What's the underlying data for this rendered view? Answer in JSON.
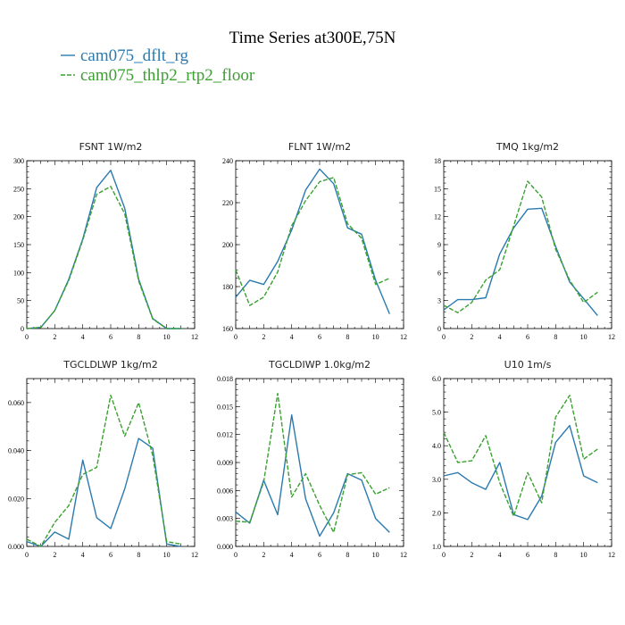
{
  "title": "Time Series at300E,75N",
  "legend": [
    {
      "label": "cam075_dflt_rg",
      "color": "#2a7ab0",
      "dash": false
    },
    {
      "label": "cam075_thlp2_rtp2_floor",
      "color": "#3aa02f",
      "dash": true
    }
  ],
  "chart_data": [
    {
      "type": "line",
      "title": "FSNT  1W/m2",
      "x": [
        0,
        1,
        2,
        3,
        4,
        5,
        6,
        7,
        8,
        9,
        10,
        11
      ],
      "xlim": [
        0,
        12
      ],
      "xticks": [
        0,
        2,
        4,
        6,
        8,
        10,
        12
      ],
      "xticklabels": [
        "0",
        "2",
        "4",
        "6",
        "8",
        "10",
        "12"
      ],
      "ylim": [
        0,
        300
      ],
      "yticks": [
        0,
        50,
        100,
        150,
        200,
        250,
        300
      ],
      "yticklabels": [
        "0",
        "50",
        "100",
        "150",
        "200",
        "250",
        "300"
      ],
      "series": [
        {
          "name": "cam075_dflt_rg",
          "values": [
            0,
            2,
            32,
            88,
            160,
            252,
            283,
            215,
            88,
            18,
            0,
            0
          ]
        },
        {
          "name": "cam075_thlp2_rtp2_floor",
          "values": [
            0,
            2,
            32,
            86,
            158,
            240,
            254,
            205,
            85,
            17,
            0,
            0
          ]
        }
      ]
    },
    {
      "type": "line",
      "title": "FLNT  1W/m2",
      "x": [
        0,
        1,
        2,
        3,
        4,
        5,
        6,
        7,
        8,
        9,
        10,
        11
      ],
      "xlim": [
        0,
        12
      ],
      "xticks": [
        0,
        2,
        4,
        6,
        8,
        10,
        12
      ],
      "xticklabels": [
        "0",
        "2",
        "4",
        "6",
        "8",
        "10",
        "12"
      ],
      "ylim": [
        160,
        240
      ],
      "yticks": [
        160,
        180,
        200,
        220,
        240
      ],
      "yticklabels": [
        "160",
        "180",
        "200",
        "220",
        "240"
      ],
      "series": [
        {
          "name": "cam075_dflt_rg",
          "values": [
            175,
            183,
            181,
            192,
            207,
            226,
            236,
            229,
            208,
            205,
            183,
            167
          ]
        },
        {
          "name": "cam075_thlp2_rtp2_floor",
          "values": [
            188,
            171,
            175,
            187,
            209,
            221,
            230,
            232,
            210,
            203,
            181,
            184
          ]
        }
      ]
    },
    {
      "type": "line",
      "title": "TMQ  1kg/m2",
      "x": [
        0,
        1,
        2,
        3,
        4,
        5,
        6,
        7,
        8,
        9,
        10,
        11
      ],
      "xlim": [
        0,
        12
      ],
      "xticks": [
        0,
        2,
        4,
        6,
        8,
        10,
        12
      ],
      "xticklabels": [
        "0",
        "2",
        "4",
        "6",
        "8",
        "10",
        "12"
      ],
      "ylim": [
        0,
        18
      ],
      "yticks": [
        0,
        3,
        6,
        9,
        12,
        15,
        18
      ],
      "yticklabels": [
        "0",
        "3",
        "6",
        "9",
        "12",
        "15",
        "18"
      ],
      "series": [
        {
          "name": "cam075_dflt_rg",
          "values": [
            2.0,
            3.1,
            3.1,
            3.3,
            8.0,
            10.8,
            12.8,
            12.9,
            8.8,
            5.0,
            3.2,
            1.4
          ]
        },
        {
          "name": "cam075_thlp2_rtp2_floor",
          "values": [
            2.5,
            1.7,
            2.8,
            5.2,
            6.3,
            11.0,
            15.8,
            14.1,
            8.5,
            5.2,
            2.8,
            3.9
          ]
        }
      ]
    },
    {
      "type": "line",
      "title": "TGCLDLWP  1kg/m2",
      "x": [
        0,
        1,
        2,
        3,
        4,
        5,
        6,
        7,
        8,
        9,
        10,
        11
      ],
      "xlim": [
        0,
        12
      ],
      "xticks": [
        0,
        2,
        4,
        6,
        8,
        10,
        12
      ],
      "xticklabels": [
        "0",
        "2",
        "4",
        "6",
        "8",
        "10",
        "12"
      ],
      "ylim": [
        0,
        0.07
      ],
      "yticks": [
        0,
        0.02,
        0.04,
        0.06
      ],
      "yticklabels": [
        "0.000",
        "0.020",
        "0.040",
        "0.060"
      ],
      "series": [
        {
          "name": "cam075_dflt_rg",
          "values": [
            0.002,
            0.0,
            0.006,
            0.003,
            0.036,
            0.012,
            0.0075,
            0.024,
            0.045,
            0.041,
            0.001,
            0.0
          ]
        },
        {
          "name": "cam075_thlp2_rtp2_floor",
          "values": [
            0.003,
            0.0,
            0.01,
            0.017,
            0.03,
            0.033,
            0.063,
            0.046,
            0.06,
            0.038,
            0.002,
            0.001
          ]
        }
      ]
    },
    {
      "type": "line",
      "title": "TGCLDIWP  1.0kg/m2",
      "x": [
        0,
        1,
        2,
        3,
        4,
        5,
        6,
        7,
        8,
        9,
        10,
        11
      ],
      "xlim": [
        0,
        12
      ],
      "xticks": [
        0,
        2,
        4,
        6,
        8,
        10,
        12
      ],
      "xticklabels": [
        "0",
        "2",
        "4",
        "6",
        "8",
        "10",
        "12"
      ],
      "ylim": [
        0,
        0.018
      ],
      "yticks": [
        0,
        0.003,
        0.006,
        0.009,
        0.012,
        0.015,
        0.018
      ],
      "yticklabels": [
        "0.000",
        "0.003",
        "0.006",
        "0.009",
        "0.012",
        "0.015",
        "0.018"
      ],
      "series": [
        {
          "name": "cam075_dflt_rg",
          "values": [
            0.0037,
            0.0025,
            0.0071,
            0.0034,
            0.0141,
            0.0051,
            0.0011,
            0.0036,
            0.0078,
            0.0071,
            0.003,
            0.0015
          ]
        },
        {
          "name": "cam075_thlp2_rtp2_floor",
          "values": [
            0.0027,
            0.0026,
            0.0069,
            0.0164,
            0.0053,
            0.0078,
            0.0044,
            0.0015,
            0.0077,
            0.0079,
            0.0056,
            0.0063
          ]
        }
      ]
    },
    {
      "type": "line",
      "title": "U10  1m/s",
      "x": [
        0,
        1,
        2,
        3,
        4,
        5,
        6,
        7,
        8,
        9,
        10,
        11
      ],
      "xlim": [
        0,
        12
      ],
      "xticks": [
        0,
        2,
        4,
        6,
        8,
        10,
        12
      ],
      "xticklabels": [
        "0",
        "2",
        "4",
        "6",
        "8",
        "10",
        "12"
      ],
      "ylim": [
        1,
        6
      ],
      "yticks": [
        1,
        2,
        3,
        4,
        5,
        6
      ],
      "yticklabels": [
        "1.0",
        "2.0",
        "3.0",
        "4.0",
        "5.0",
        "6.0"
      ],
      "series": [
        {
          "name": "cam075_dflt_rg",
          "values": [
            3.1,
            3.2,
            2.9,
            2.7,
            3.5,
            1.95,
            1.8,
            2.5,
            4.1,
            4.6,
            3.1,
            2.9
          ]
        },
        {
          "name": "cam075_thlp2_rtp2_floor",
          "values": [
            4.4,
            3.5,
            3.55,
            4.3,
            2.9,
            1.9,
            3.2,
            2.3,
            4.85,
            5.5,
            3.6,
            3.9
          ]
        }
      ]
    }
  ]
}
